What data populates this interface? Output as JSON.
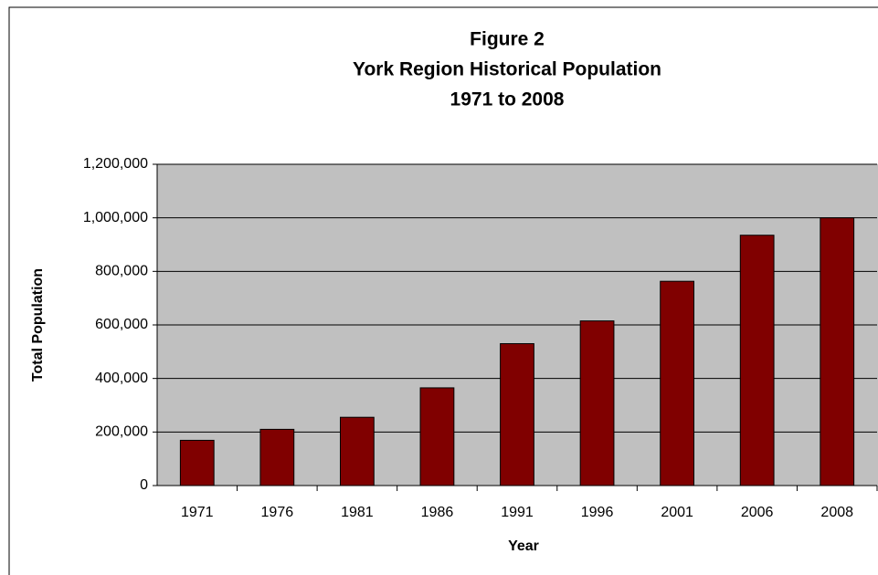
{
  "chart_data": {
    "type": "bar",
    "title": [
      "Figure 2",
      "York Region Historical Population",
      "1971 to 2008"
    ],
    "x_label": "Year",
    "y_label": "Total Population",
    "categories": [
      "1971",
      "1976",
      "1981",
      "1986",
      "1991",
      "1996",
      "2001",
      "2006",
      "2008"
    ],
    "values": [
      169000,
      210000,
      255000,
      365000,
      530000,
      615000,
      763000,
      935000,
      1000000
    ],
    "color": "#800000",
    "ylim": [
      0,
      1200000
    ],
    "yticks": [
      0,
      {
        "value": 200000,
        "label": "200,000"
      },
      {
        "value": 400000,
        "label": "400,000"
      },
      {
        "value": 600000,
        "label": "600,000"
      },
      {
        "value": 800000,
        "label": "800,000"
      },
      {
        "value": 1000000,
        "label": "1,000,000"
      },
      {
        "value": 1200000,
        "label": "1,200,000"
      }
    ],
    "grid": true
  }
}
